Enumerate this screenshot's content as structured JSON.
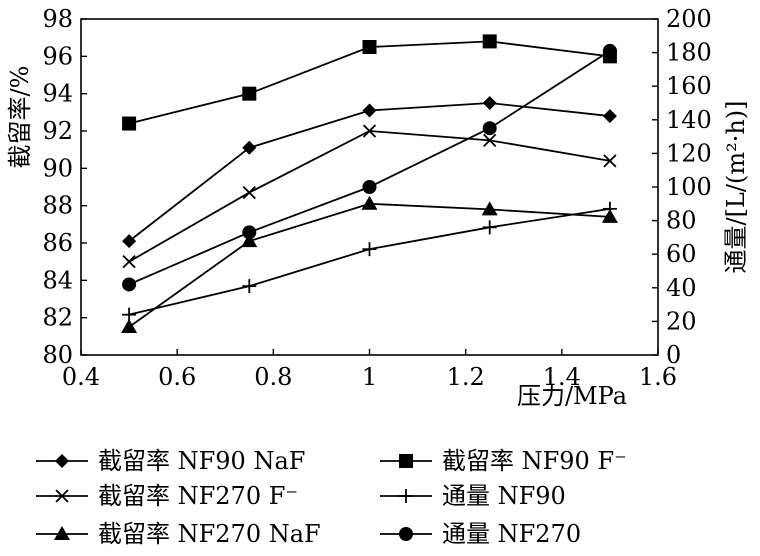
{
  "chart_data": {
    "type": "line",
    "x": [
      0.5,
      0.75,
      1.0,
      1.25,
      1.5
    ],
    "xlabel": "压力/MPa",
    "xlim": [
      0.4,
      1.6
    ],
    "xticks": [
      "0.4",
      "0.6",
      "0.8",
      "1",
      "1.2",
      "1.4",
      "1.6"
    ],
    "ylabel": "截留率/%",
    "ylim": [
      80,
      98
    ],
    "yticks": [
      "80",
      "82",
      "84",
      "86",
      "88",
      "90",
      "92",
      "94",
      "96",
      "98"
    ],
    "y2label": "通量/[L/(m²·h)]",
    "y2lim": [
      0,
      200
    ],
    "y2ticks": [
      "0",
      "20",
      "40",
      "60",
      "80",
      "100",
      "120",
      "140",
      "160",
      "180",
      "200"
    ],
    "legend_position": "bottom",
    "series": [
      {
        "name": "截留率 NF90 NaF",
        "axis": "left",
        "marker": "diamond",
        "values": [
          86.1,
          91.1,
          93.1,
          93.5,
          92.8
        ]
      },
      {
        "name": "截留率 NF90 F⁻",
        "axis": "left",
        "marker": "square",
        "values": [
          92.4,
          94.0,
          96.5,
          96.8,
          96.0
        ]
      },
      {
        "name": "截留率 NF270 F⁻",
        "axis": "left",
        "marker": "x",
        "values": [
          85.0,
          88.7,
          92.0,
          91.5,
          90.4
        ]
      },
      {
        "name": "通量 NF90",
        "axis": "right",
        "marker": "plus",
        "values": [
          24,
          41,
          63,
          76,
          87
        ]
      },
      {
        "name": "截留率 NF270 NaF",
        "axis": "left",
        "marker": "triangle",
        "values": [
          81.5,
          86.1,
          88.1,
          87.8,
          87.4
        ]
      },
      {
        "name": "通量 NF270",
        "axis": "right",
        "marker": "circle",
        "values": [
          42,
          73,
          100,
          135,
          181
        ]
      }
    ]
  }
}
